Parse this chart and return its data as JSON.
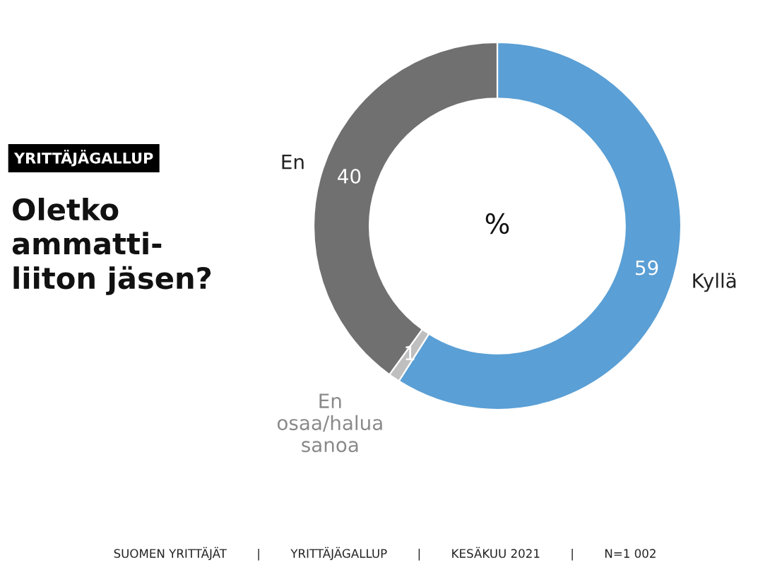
{
  "chart_data": {
    "type": "donut",
    "title": "Oletko\nammatti-\nliiton jäsen?",
    "subtitle": "YRITTÄJÄGALLUP",
    "categories": [
      "Kyllä",
      "En\nosaa/halua\nsanoa",
      "En"
    ],
    "values": [
      59,
      1,
      40
    ],
    "colors": [
      "#5a9fd5",
      "#bfbfbf",
      "#707070"
    ],
    "data_labels": true,
    "annotations": [
      "%",
      "SUOMEN YRITTÄJÄT        |        YRITTÄJÄGALLUP        |        KESÄKUU 2021        |        N=1 002"
    ]
  }
}
